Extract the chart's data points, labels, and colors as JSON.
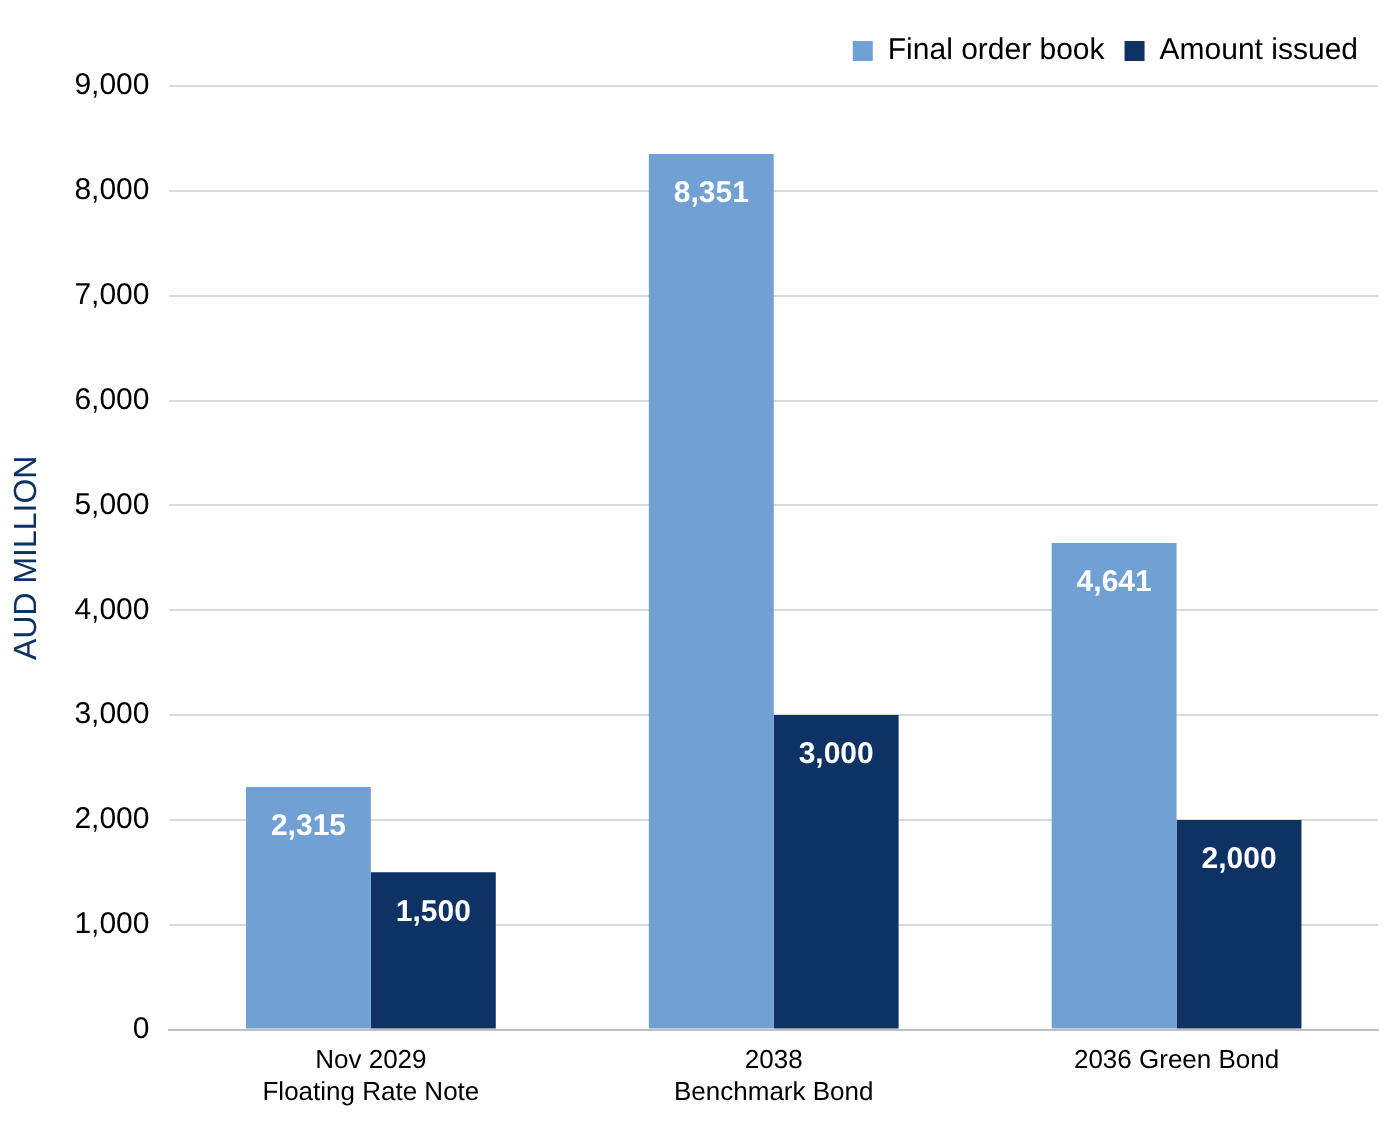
{
  "chart_data": {
    "type": "bar",
    "ylabel": "AUD MILLION",
    "categories": [
      "Nov 2029\nFloating Rate Note",
      "2038\nBenchmark Bond",
      "2036 Green Bond"
    ],
    "series": [
      {
        "name": "Final order book",
        "color": "#70a0d4",
        "values": [
          2315,
          8351,
          4641
        ],
        "value_labels": [
          "2,315",
          "8,351",
          "4,641"
        ]
      },
      {
        "name": "Amount issued",
        "color": "#0d3263",
        "values": [
          1500,
          3000,
          2000
        ],
        "value_labels": [
          "1,500",
          "3,000",
          "2,000"
        ]
      }
    ],
    "ylim": [
      0,
      9000
    ],
    "yticks": [
      0,
      {
        "value": 1000,
        "label": "1,000"
      },
      {
        "value": 2000,
        "label": "2,000"
      },
      {
        "value": 3000,
        "label": "3,000"
      },
      {
        "value": 4000,
        "label": "4,000"
      },
      {
        "value": 5000,
        "label": "5,000"
      },
      {
        "value": 6000,
        "label": "6,000"
      },
      {
        "value": 7000,
        "label": "7,000"
      },
      {
        "value": 8000,
        "label": "8,000"
      },
      {
        "value": 9000,
        "label": "9,000"
      }
    ],
    "grid": "y",
    "legend": "top right"
  }
}
